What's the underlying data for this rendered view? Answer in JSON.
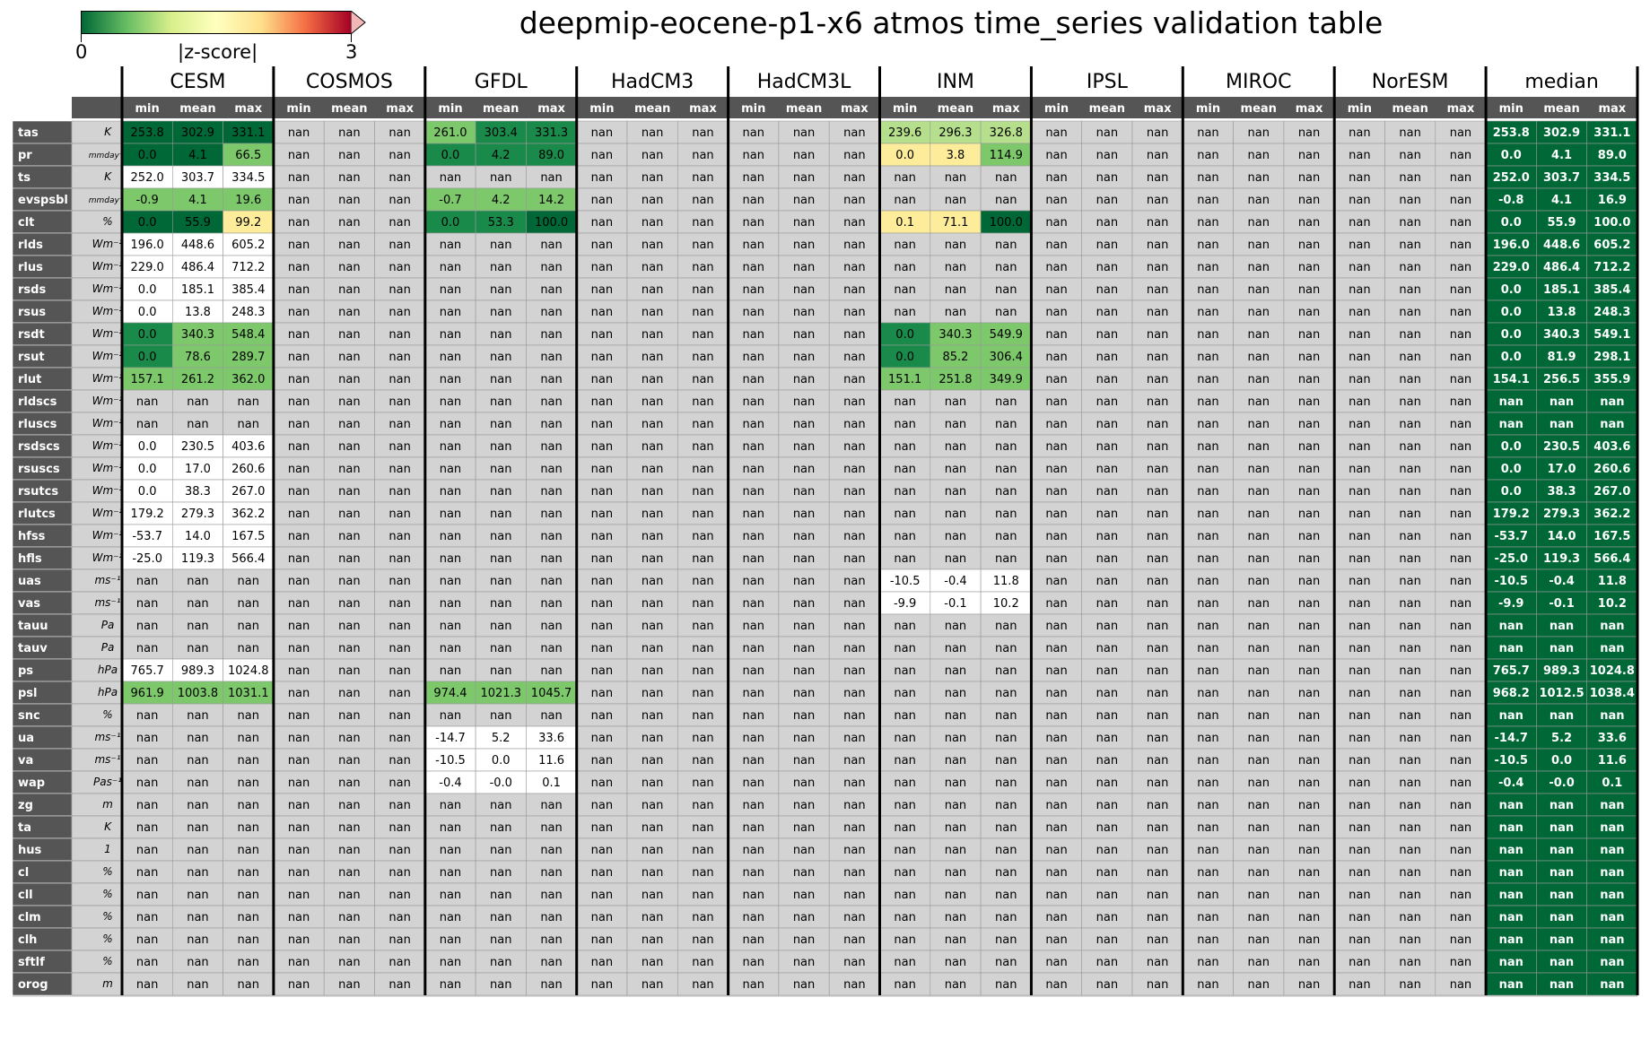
{
  "chart_data": {
    "type": "table",
    "title": "deepmip-eocene-p1-x6 atmos time_series validation table",
    "colorbar": {
      "label": "|z-score|",
      "min_label": "0",
      "max_label": "3",
      "colors": [
        "#006837",
        "#66bd63",
        "#d9ef8b",
        "#ffffbf",
        "#fee08b",
        "#f46d43",
        "#a50026"
      ]
    },
    "groups": [
      "CESM",
      "COSMOS",
      "GFDL",
      "HadCM3",
      "HadCM3L",
      "INM",
      "IPSL",
      "MIROC",
      "NorESM",
      "median"
    ],
    "subheaders": [
      "min",
      "mean",
      "max"
    ],
    "colors": {
      "dark_green": "#006837",
      "mid_green": "#1a8a4a",
      "light_green": "#7cc86a",
      "pale_green": "#b5df8c",
      "pale_yellow": "#fdec9a",
      "white": "#ffffff",
      "gray": "#d3d3d3",
      "header_gray": "#555555",
      "median_green": "#006837"
    },
    "variables": [
      {
        "name": "tas",
        "unit": "K"
      },
      {
        "name": "pr",
        "unit": "mmday⁻¹"
      },
      {
        "name": "ts",
        "unit": "K"
      },
      {
        "name": "evspsbl",
        "unit": "mmday⁻¹"
      },
      {
        "name": "clt",
        "unit": "%"
      },
      {
        "name": "rlds",
        "unit": "Wm⁻²"
      },
      {
        "name": "rlus",
        "unit": "Wm⁻²"
      },
      {
        "name": "rsds",
        "unit": "Wm⁻²"
      },
      {
        "name": "rsus",
        "unit": "Wm⁻²"
      },
      {
        "name": "rsdt",
        "unit": "Wm⁻²"
      },
      {
        "name": "rsut",
        "unit": "Wm⁻²"
      },
      {
        "name": "rlut",
        "unit": "Wm⁻²"
      },
      {
        "name": "rldscs",
        "unit": "Wm⁻²"
      },
      {
        "name": "rluscs",
        "unit": "Wm⁻²"
      },
      {
        "name": "rsdscs",
        "unit": "Wm⁻²"
      },
      {
        "name": "rsuscs",
        "unit": "Wm⁻²"
      },
      {
        "name": "rsutcs",
        "unit": "Wm⁻²"
      },
      {
        "name": "rlutcs",
        "unit": "Wm⁻²"
      },
      {
        "name": "hfss",
        "unit": "Wm⁻²"
      },
      {
        "name": "hfls",
        "unit": "Wm⁻²"
      },
      {
        "name": "uas",
        "unit": "ms⁻¹"
      },
      {
        "name": "vas",
        "unit": "ms⁻¹"
      },
      {
        "name": "tauu",
        "unit": "Pa"
      },
      {
        "name": "tauv",
        "unit": "Pa"
      },
      {
        "name": "ps",
        "unit": "hPa"
      },
      {
        "name": "psl",
        "unit": "hPa"
      },
      {
        "name": "snc",
        "unit": "%"
      },
      {
        "name": "ua",
        "unit": "ms⁻¹"
      },
      {
        "name": "va",
        "unit": "ms⁻¹"
      },
      {
        "name": "wap",
        "unit": "Pas⁻¹"
      },
      {
        "name": "zg",
        "unit": "m"
      },
      {
        "name": "ta",
        "unit": "K"
      },
      {
        "name": "hus",
        "unit": "1"
      },
      {
        "name": "cl",
        "unit": "%"
      },
      {
        "name": "cll",
        "unit": "%"
      },
      {
        "name": "clm",
        "unit": "%"
      },
      {
        "name": "clh",
        "unit": "%"
      },
      {
        "name": "sftlf",
        "unit": "%"
      },
      {
        "name": "orog",
        "unit": "m"
      }
    ],
    "cells": {
      "CESM": {
        "tas": [
          "253.8",
          "302.9",
          "331.1"
        ],
        "pr": [
          "0.0",
          "4.1",
          "66.5"
        ],
        "ts": [
          "252.0",
          "303.7",
          "334.5"
        ],
        "evspsbl": [
          "-0.9",
          "4.1",
          "19.6"
        ],
        "clt": [
          "0.0",
          "55.9",
          "99.2"
        ],
        "rlds": [
          "196.0",
          "448.6",
          "605.2"
        ],
        "rlus": [
          "229.0",
          "486.4",
          "712.2"
        ],
        "rsds": [
          "0.0",
          "185.1",
          "385.4"
        ],
        "rsus": [
          "0.0",
          "13.8",
          "248.3"
        ],
        "rsdt": [
          "0.0",
          "340.3",
          "548.4"
        ],
        "rsut": [
          "0.0",
          "78.6",
          "289.7"
        ],
        "rlut": [
          "157.1",
          "261.2",
          "362.0"
        ],
        "rsdscs": [
          "0.0",
          "230.5",
          "403.6"
        ],
        "rsuscs": [
          "0.0",
          "17.0",
          "260.6"
        ],
        "rsutcs": [
          "0.0",
          "38.3",
          "267.0"
        ],
        "rlutcs": [
          "179.2",
          "279.3",
          "362.2"
        ],
        "hfss": [
          "-53.7",
          "14.0",
          "167.5"
        ],
        "hfls": [
          "-25.0",
          "119.3",
          "566.4"
        ],
        "ps": [
          "765.7",
          "989.3",
          "1024.8"
        ],
        "psl": [
          "961.9",
          "1003.8",
          "1031.1"
        ]
      },
      "GFDL": {
        "tas": [
          "261.0",
          "303.4",
          "331.3"
        ],
        "pr": [
          "0.0",
          "4.2",
          "89.0"
        ],
        "evspsbl": [
          "-0.7",
          "4.2",
          "14.2"
        ],
        "clt": [
          "0.0",
          "53.3",
          "100.0"
        ],
        "psl": [
          "974.4",
          "1021.3",
          "1045.7"
        ],
        "ua": [
          "-14.7",
          "5.2",
          "33.6"
        ],
        "va": [
          "-10.5",
          "0.0",
          "11.6"
        ],
        "wap": [
          "-0.4",
          "-0.0",
          "0.1"
        ]
      },
      "INM": {
        "tas": [
          "239.6",
          "296.3",
          "326.8"
        ],
        "pr": [
          "0.0",
          "3.8",
          "114.9"
        ],
        "clt": [
          "0.1",
          "71.1",
          "100.0"
        ],
        "rsdt": [
          "0.0",
          "340.3",
          "549.9"
        ],
        "rsut": [
          "0.0",
          "85.2",
          "306.4"
        ],
        "rlut": [
          "151.1",
          "251.8",
          "349.9"
        ],
        "uas": [
          "-10.5",
          "-0.4",
          "11.8"
        ],
        "vas": [
          "-9.9",
          "-0.1",
          "10.2"
        ]
      },
      "median": {
        "tas": [
          "253.8",
          "302.9",
          "331.1"
        ],
        "pr": [
          "0.0",
          "4.1",
          "89.0"
        ],
        "ts": [
          "252.0",
          "303.7",
          "334.5"
        ],
        "evspsbl": [
          "-0.8",
          "4.1",
          "16.9"
        ],
        "clt": [
          "0.0",
          "55.9",
          "100.0"
        ],
        "rlds": [
          "196.0",
          "448.6",
          "605.2"
        ],
        "rlus": [
          "229.0",
          "486.4",
          "712.2"
        ],
        "rsds": [
          "0.0",
          "185.1",
          "385.4"
        ],
        "rsus": [
          "0.0",
          "13.8",
          "248.3"
        ],
        "rsdt": [
          "0.0",
          "340.3",
          "549.1"
        ],
        "rsut": [
          "0.0",
          "81.9",
          "298.1"
        ],
        "rlut": [
          "154.1",
          "256.5",
          "355.9"
        ],
        "rsdscs": [
          "0.0",
          "230.5",
          "403.6"
        ],
        "rsuscs": [
          "0.0",
          "17.0",
          "260.6"
        ],
        "rsutcs": [
          "0.0",
          "38.3",
          "267.0"
        ],
        "rlutcs": [
          "179.2",
          "279.3",
          "362.2"
        ],
        "hfss": [
          "-53.7",
          "14.0",
          "167.5"
        ],
        "hfls": [
          "-25.0",
          "119.3",
          "566.4"
        ],
        "uas": [
          "-10.5",
          "-0.4",
          "11.8"
        ],
        "vas": [
          "-9.9",
          "-0.1",
          "10.2"
        ],
        "ps": [
          "765.7",
          "989.3",
          "1024.8"
        ],
        "psl": [
          "968.2",
          "1012.5",
          "1038.4"
        ],
        "ua": [
          "-14.7",
          "5.2",
          "33.6"
        ],
        "va": [
          "-10.5",
          "0.0",
          "11.6"
        ],
        "wap": [
          "-0.4",
          "-0.0",
          "0.1"
        ]
      }
    },
    "cell_colors": {
      "CESM": {
        "tas": [
          "dark_green",
          "dark_green",
          "dark_green"
        ],
        "pr": [
          "dark_green",
          "dark_green",
          "light_green"
        ],
        "ts": [
          "white",
          "white",
          "white"
        ],
        "evspsbl": [
          "light_green",
          "light_green",
          "light_green"
        ],
        "clt": [
          "dark_green",
          "dark_green",
          "pale_yellow"
        ],
        "rlds": [
          "white",
          "white",
          "white"
        ],
        "rlus": [
          "white",
          "white",
          "white"
        ],
        "rsds": [
          "white",
          "white",
          "white"
        ],
        "rsus": [
          "white",
          "white",
          "white"
        ],
        "rsdt": [
          "mid_green",
          "light_green",
          "light_green"
        ],
        "rsut": [
          "mid_green",
          "light_green",
          "light_green"
        ],
        "rlut": [
          "light_green",
          "light_green",
          "light_green"
        ],
        "rsdscs": [
          "white",
          "white",
          "white"
        ],
        "rsuscs": [
          "white",
          "white",
          "white"
        ],
        "rsutcs": [
          "white",
          "white",
          "white"
        ],
        "rlutcs": [
          "white",
          "white",
          "white"
        ],
        "hfss": [
          "white",
          "white",
          "white"
        ],
        "hfls": [
          "white",
          "white",
          "white"
        ],
        "ps": [
          "white",
          "white",
          "white"
        ],
        "psl": [
          "light_green",
          "light_green",
          "light_green"
        ]
      },
      "GFDL": {
        "tas": [
          "light_green",
          "mid_green",
          "mid_green"
        ],
        "pr": [
          "mid_green",
          "mid_green",
          "mid_green"
        ],
        "evspsbl": [
          "light_green",
          "light_green",
          "light_green"
        ],
        "clt": [
          "mid_green",
          "mid_green",
          "dark_green"
        ],
        "psl": [
          "light_green",
          "light_green",
          "light_green"
        ],
        "ua": [
          "white",
          "white",
          "white"
        ],
        "va": [
          "white",
          "white",
          "white"
        ],
        "wap": [
          "white",
          "white",
          "white"
        ]
      },
      "INM": {
        "tas": [
          "pale_green",
          "pale_green",
          "pale_green"
        ],
        "pr": [
          "pale_yellow",
          "pale_yellow",
          "light_green"
        ],
        "clt": [
          "pale_yellow",
          "pale_yellow",
          "dark_green"
        ],
        "rsdt": [
          "mid_green",
          "light_green",
          "light_green"
        ],
        "rsut": [
          "mid_green",
          "light_green",
          "light_green"
        ],
        "rlut": [
          "light_green",
          "light_green",
          "light_green"
        ],
        "uas": [
          "white",
          "white",
          "white"
        ],
        "vas": [
          "white",
          "white",
          "white"
        ]
      }
    },
    "missing_value": "nan"
  }
}
